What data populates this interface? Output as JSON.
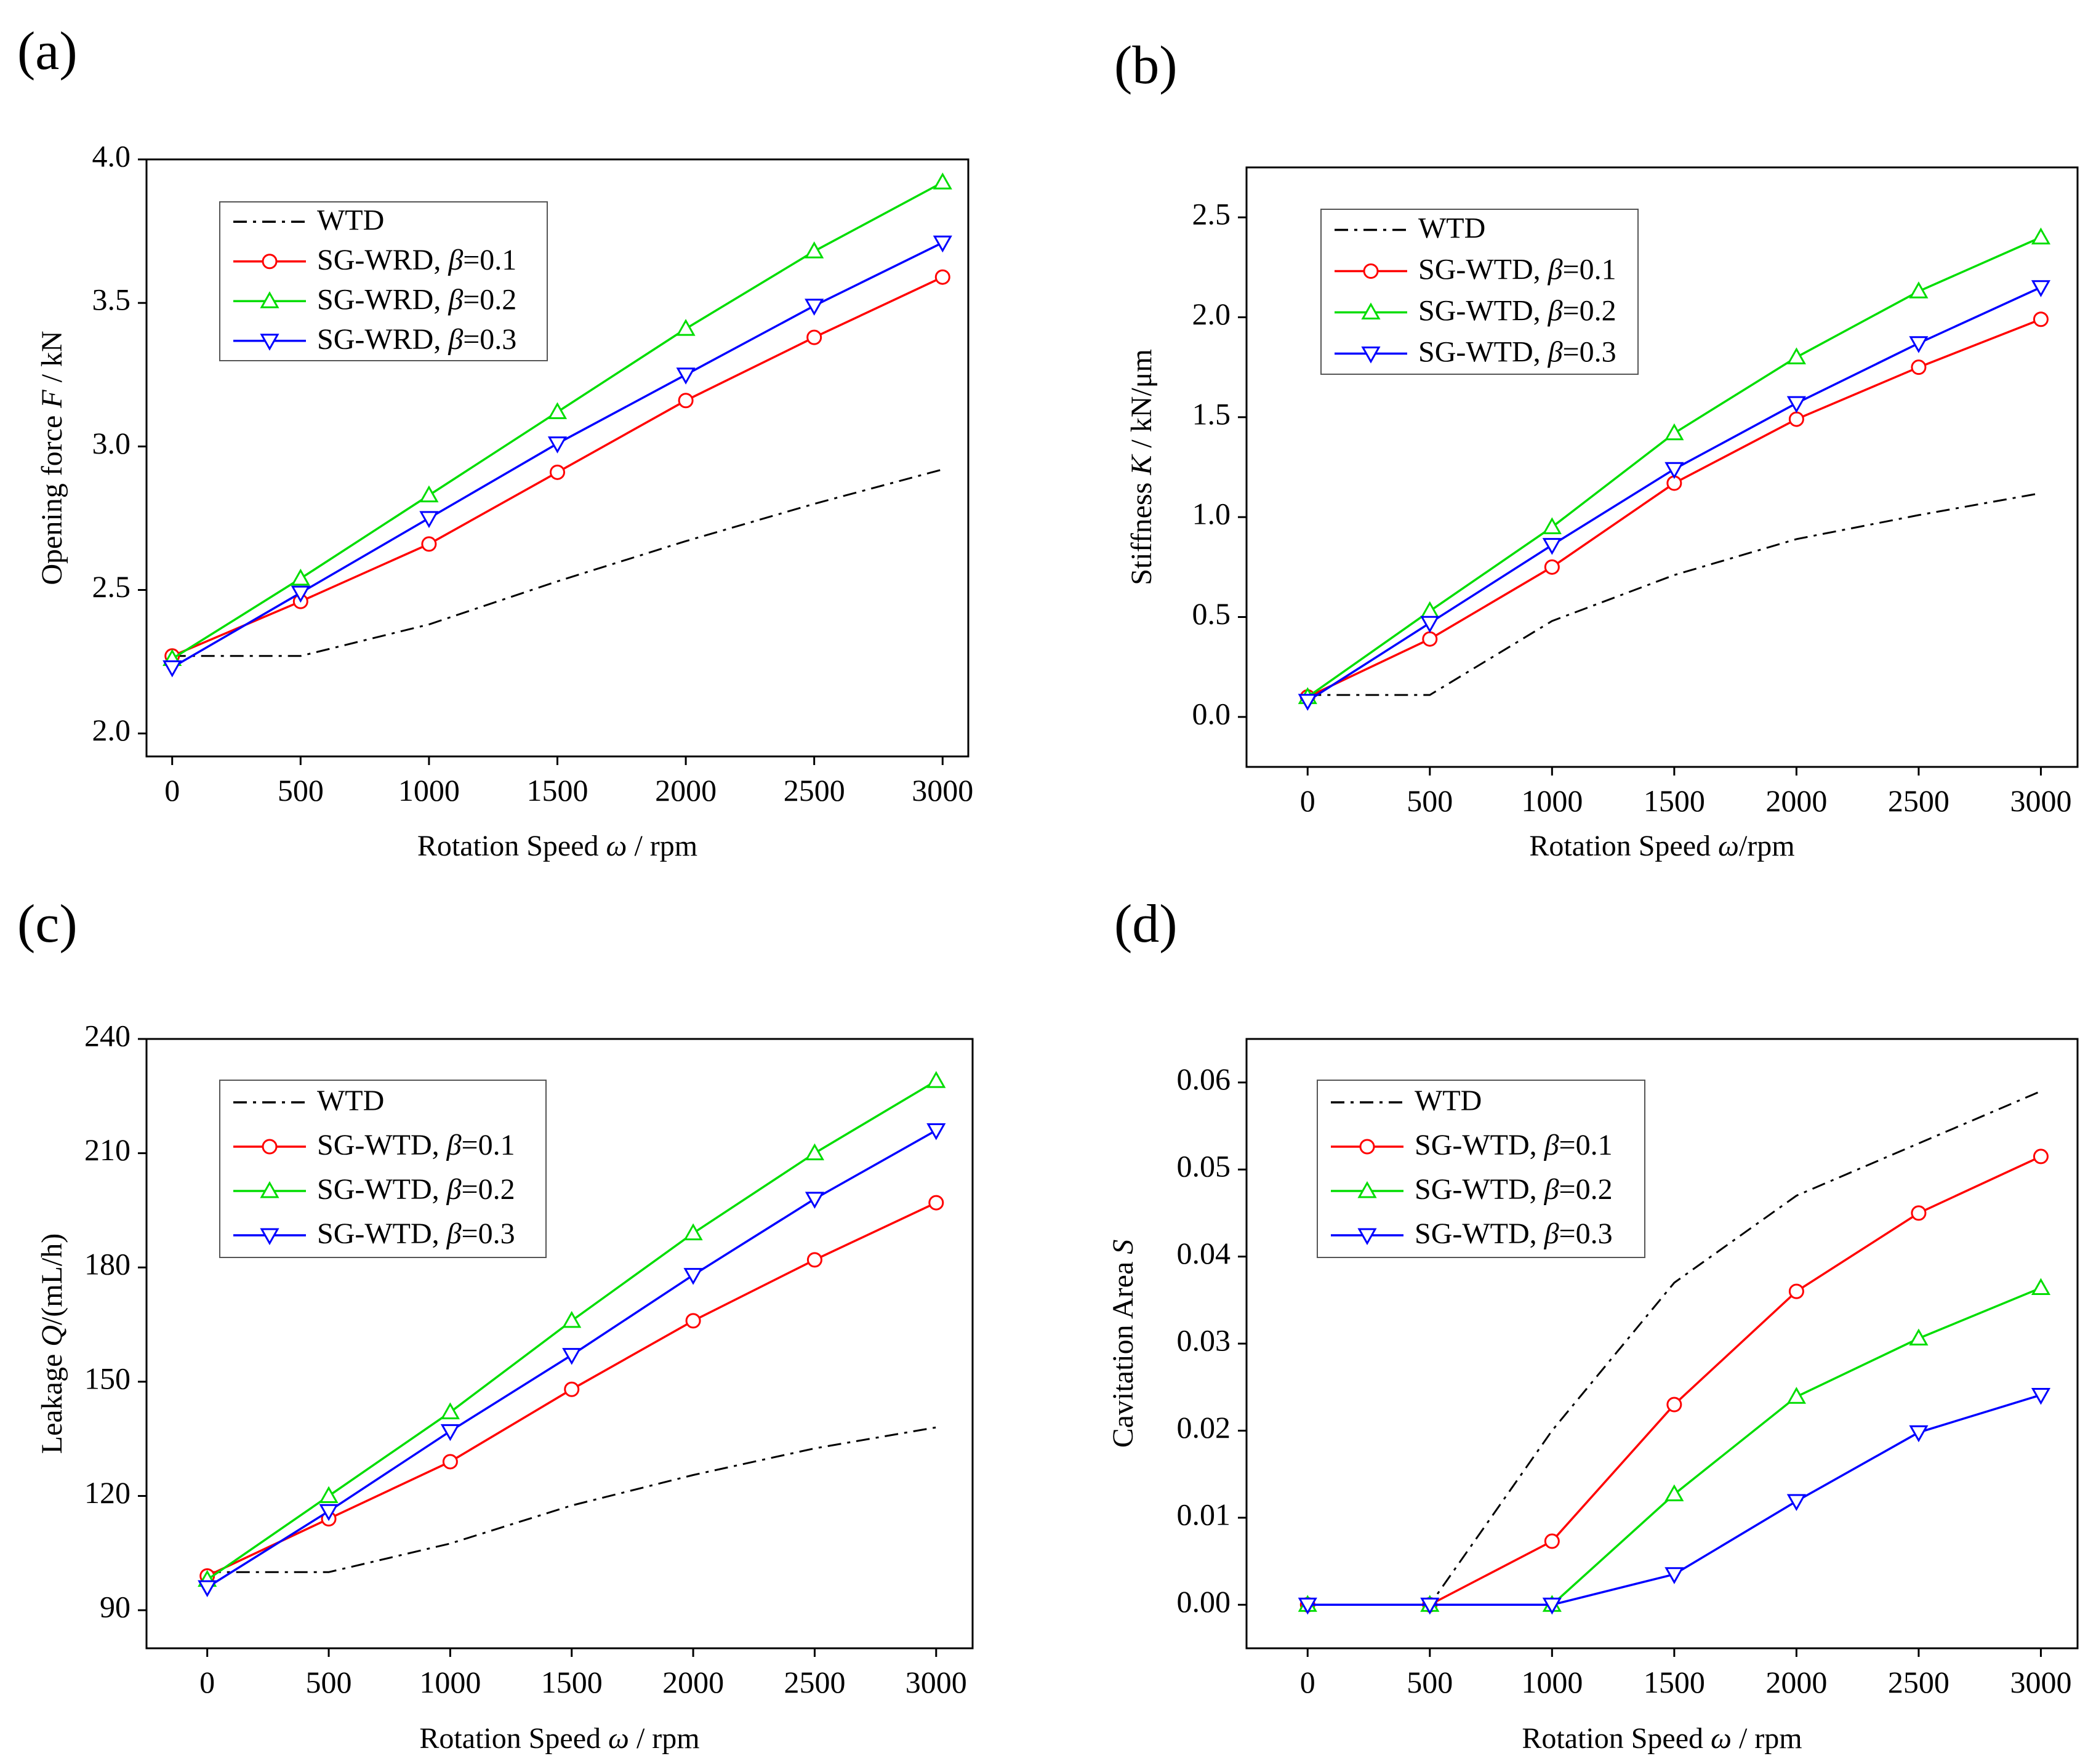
{
  "chart_data": [
    {
      "panel": "(a)",
      "type": "line",
      "xlabel": "Rotation Speed   ω / rpm",
      "ylabel": "Opening force   F / kN",
      "x": [
        0,
        500,
        1000,
        1500,
        2000,
        2500,
        3000
      ],
      "xlim": [
        -100,
        3100
      ],
      "ylim": [
        1.92,
        4.0
      ],
      "xticks": [
        0,
        500,
        1000,
        1500,
        2000,
        2500,
        3000
      ],
      "yticks": [
        2.0,
        2.5,
        3.0,
        3.5,
        4.0
      ],
      "ydec": 1,
      "legend": "top-left",
      "series": [
        {
          "name": "WTD",
          "color": "#000000",
          "dash": "dashdot",
          "marker": "none",
          "values": [
            2.27,
            2.27,
            2.38,
            2.53,
            2.67,
            2.8,
            2.92
          ]
        },
        {
          "name": "SG-WRD, β=0.1",
          "color": "#ff0000",
          "marker": "circle",
          "values": [
            2.27,
            2.46,
            2.66,
            2.91,
            3.16,
            3.38,
            3.59
          ]
        },
        {
          "name": "SG-WRD, β=0.2",
          "color": "#00dd00",
          "marker": "triangle-up",
          "values": [
            2.26,
            2.54,
            2.83,
            3.12,
            3.41,
            3.68,
            3.92
          ]
        },
        {
          "name": "SG-WRD, β=0.3",
          "color": "#0000ff",
          "marker": "triangle-down",
          "values": [
            2.23,
            2.49,
            2.75,
            3.01,
            3.25,
            3.49,
            3.71
          ]
        }
      ]
    },
    {
      "panel": "(b)",
      "type": "line",
      "xlabel": "Rotation Speed ω/rpm",
      "ylabel": "Stiffness K / kN/μm",
      "x": [
        0,
        500,
        1000,
        1500,
        2000,
        2500,
        3000
      ],
      "xlim": [
        -250,
        3150
      ],
      "ylim": [
        -0.25,
        2.75
      ],
      "xticks": [
        0,
        500,
        1000,
        1500,
        2000,
        2500,
        3000
      ],
      "yticks": [
        0.0,
        0.5,
        1.0,
        1.5,
        2.0,
        2.5
      ],
      "ydec": 1,
      "legend": "top-left",
      "series": [
        {
          "name": "WTD",
          "color": "#000000",
          "dash": "dashdot",
          "marker": "none",
          "values": [
            0.11,
            0.11,
            0.48,
            0.71,
            0.89,
            1.01,
            1.12
          ]
        },
        {
          "name": "SG-WTD, β=0.1",
          "color": "#ff0000",
          "marker": "circle",
          "values": [
            0.1,
            0.39,
            0.75,
            1.17,
            1.49,
            1.75,
            1.99
          ]
        },
        {
          "name": "SG-WTD, β=0.2",
          "color": "#00dd00",
          "marker": "triangle-up",
          "values": [
            0.1,
            0.53,
            0.95,
            1.42,
            1.8,
            2.13,
            2.4
          ]
        },
        {
          "name": "SG-WTD, β=0.3",
          "color": "#0000ff",
          "marker": "triangle-down",
          "values": [
            0.08,
            0.47,
            0.86,
            1.24,
            1.57,
            1.87,
            2.15
          ]
        }
      ]
    },
    {
      "panel": "(c)",
      "type": "line",
      "xlabel": "Rotation Speed   ω / rpm",
      "ylabel": "Leakage Q/(mL/h)",
      "x": [
        0,
        500,
        1000,
        1500,
        2000,
        2500,
        3000
      ],
      "xlim": [
        -250,
        3150
      ],
      "ylim": [
        80,
        240
      ],
      "xticks": [
        0,
        500,
        1000,
        1500,
        2000,
        2500,
        3000
      ],
      "yticks": [
        90,
        120,
        150,
        180,
        210,
        240
      ],
      "ydec": 0,
      "legend": "top-left",
      "series": [
        {
          "name": "WTD",
          "color": "#000000",
          "dash": "dashdot",
          "marker": "none",
          "values": [
            100,
            100,
            107.5,
            117.5,
            125.5,
            132.5,
            138
          ]
        },
        {
          "name": "SG-WTD, β=0.1",
          "color": "#ff0000",
          "marker": "circle",
          "values": [
            99,
            114,
            129,
            148,
            166,
            182,
            197
          ]
        },
        {
          "name": "SG-WTD, β=0.2",
          "color": "#00dd00",
          "marker": "triangle-up",
          "values": [
            98,
            120,
            142,
            166,
            189,
            210,
            229
          ]
        },
        {
          "name": "SG-WTD, β=0.3",
          "color": "#0000ff",
          "marker": "triangle-down",
          "values": [
            96,
            116,
            137,
            157,
            178,
            198,
            216
          ]
        }
      ]
    },
    {
      "panel": "(d)",
      "type": "line",
      "xlabel": "Rotation Speed   ω / rpm",
      "ylabel": "Cavitation Area S",
      "x": [
        0,
        500,
        1000,
        1500,
        2000,
        2500,
        3000
      ],
      "xlim": [
        -250,
        3150
      ],
      "ylim": [
        -0.005,
        0.065
      ],
      "xticks": [
        0,
        500,
        1000,
        1500,
        2000,
        2500,
        3000
      ],
      "yticks": [
        0.0,
        0.01,
        0.02,
        0.03,
        0.04,
        0.05,
        0.06
      ],
      "ydec": 2,
      "legend": "top-left",
      "series": [
        {
          "name": "WTD",
          "color": "#000000",
          "dash": "dashdot",
          "marker": "none",
          "values": [
            0,
            0,
            0.02,
            0.037,
            0.047,
            0.053,
            0.059
          ]
        },
        {
          "name": "SG-WTD, β=0.1",
          "color": "#ff0000",
          "marker": "circle",
          "values": [
            0,
            0,
            0.0073,
            0.023,
            0.036,
            0.045,
            0.0515
          ]
        },
        {
          "name": "SG-WTD, β=0.2",
          "color": "#00dd00",
          "marker": "triangle-up",
          "values": [
            0,
            0,
            0,
            0.0127,
            0.0239,
            0.0306,
            0.0364
          ]
        },
        {
          "name": "SG-WTD, β=0.3",
          "color": "#0000ff",
          "marker": "triangle-down",
          "values": [
            0,
            0,
            0,
            0.0035,
            0.0119,
            0.0198,
            0.0241
          ]
        }
      ]
    }
  ]
}
